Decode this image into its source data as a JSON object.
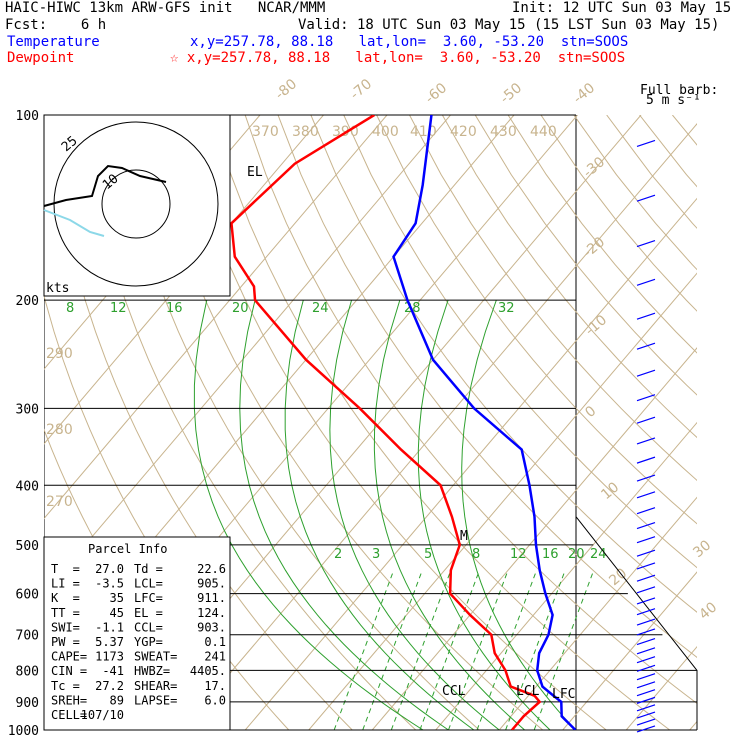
{
  "header": {
    "title": "HAIC-HIWC 13km ARW-GFS init   NCAR/MMM",
    "init": "Init: 12 UTC Sun 03 May 15",
    "fcst": "Fcst:    6 h",
    "valid": "Valid: 18 UTC Sun 03 May 15 (15 LST Sun 03 May 15)",
    "temp_label": "Temperature",
    "temp_info": "x,y=257.78, 88.18   lat,lon=  3.60, -53.20  stn=SOOS",
    "dew_label": "Dewpoint",
    "dew_info": "☆ x,y=257.78, 88.18   lat,lon=  3.60, -53.20  stn=SOOS"
  },
  "colors": {
    "temperature": "#0000ff",
    "dewpoint": "#ff0000",
    "isotherm": "#c8b48e",
    "adiabat": "#c8b48e",
    "moist_adiabat": "#2ea02e",
    "mixing_ratio": "#2ea02e"
  },
  "chart_data": {
    "type": "line",
    "chart_kind": "skew-T log-P diagram",
    "pressure_levels": [
      "100",
      "200",
      "300",
      "400",
      "500",
      "600",
      "700",
      "800",
      "900",
      "1000"
    ],
    "isotherm_labels": [
      "-80",
      "-70",
      "-60",
      "-50",
      "-40",
      "-30",
      "-20",
      "-10",
      "0",
      "10",
      "20",
      "30",
      "40"
    ],
    "theta_labels": [
      "370",
      "380",
      "390",
      "400",
      "410",
      "420",
      "430",
      "440",
      "290",
      "280",
      "270"
    ],
    "moist_labels": [
      "8",
      "12",
      "16",
      "20",
      "24",
      "28",
      "32"
    ],
    "mixing_labels": [
      "2",
      "3",
      "5",
      "8",
      "12",
      "16",
      "20",
      "24"
    ],
    "series": [
      {
        "name": "Temperature",
        "points": [
          [
            100,
            -73
          ],
          [
            130,
            -65
          ],
          [
            150,
            -61
          ],
          [
            170,
            -60
          ],
          [
            200,
            -52
          ],
          [
            250,
            -40
          ],
          [
            300,
            -27
          ],
          [
            350,
            -14
          ],
          [
            400,
            -8
          ],
          [
            450,
            -3
          ],
          [
            500,
            1
          ],
          [
            550,
            5
          ],
          [
            600,
            9
          ],
          [
            650,
            13
          ],
          [
            700,
            15
          ],
          [
            750,
            16
          ],
          [
            800,
            18
          ],
          [
            850,
            21
          ],
          [
            880,
            24
          ],
          [
            900,
            26
          ],
          [
            950,
            28
          ],
          [
            1000,
            32
          ]
        ]
      },
      {
        "name": "Dewpoint",
        "points": [
          [
            100,
            -82
          ],
          [
            120,
            -88
          ],
          [
            150,
            -90
          ],
          [
            170,
            -85
          ],
          [
            190,
            -78
          ],
          [
            200,
            -76
          ],
          [
            250,
            -60
          ],
          [
            300,
            -45
          ],
          [
            350,
            -33
          ],
          [
            400,
            -22
          ],
          [
            450,
            -16
          ],
          [
            500,
            -11
          ],
          [
            550,
            -9
          ],
          [
            600,
            -6
          ],
          [
            650,
            0
          ],
          [
            700,
            6
          ],
          [
            750,
            9
          ],
          [
            800,
            13
          ],
          [
            850,
            16
          ],
          [
            880,
            21
          ],
          [
            900,
            22.6
          ],
          [
            950,
            22
          ],
          [
            1000,
            22
          ]
        ]
      }
    ],
    "annotations": [
      "EL",
      "CCL",
      "LCL",
      "LFC",
      "M"
    ],
    "hodograph": {
      "units": "kts",
      "ring_labels": [
        "25",
        "10"
      ]
    },
    "wind_barbs": {
      "label": "Full barb:",
      "units": "5 m s⁻¹"
    }
  },
  "parcel_info": {
    "title": "Parcel Info",
    "rows": [
      [
        "T  =",
        "27.0",
        "Td =",
        "22.6"
      ],
      [
        "LI =",
        "-3.5",
        "LCL=",
        "905."
      ],
      [
        "K  =",
        "35",
        "LFC=",
        "911."
      ],
      [
        "TT =",
        "45",
        "EL =",
        "124."
      ],
      [
        "SWI=",
        "-1.1",
        "CCL=",
        "903."
      ],
      [
        "PW =",
        "5.37",
        "YGP=",
        "0.1"
      ],
      [
        "CAPE=",
        "1173",
        "SWEAT=",
        "241"
      ],
      [
        "CIN =",
        "-41",
        "HWBZ=",
        "4405."
      ],
      [
        "Tc =",
        "27.2",
        "SHEAR=",
        "17."
      ],
      [
        "SREH=",
        "89",
        "LAPSE=",
        "6.0"
      ],
      [
        "CELL=",
        "107/10",
        "",
        ""
      ]
    ]
  }
}
